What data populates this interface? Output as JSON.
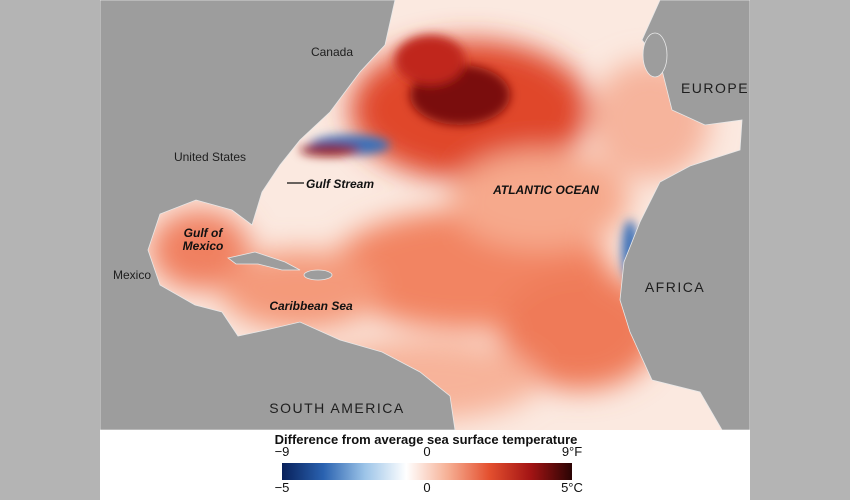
{
  "map": {
    "labels": {
      "canada": "Canada",
      "europe": "EUROPE",
      "united_states": "United States",
      "gulf_stream": "Gulf Stream",
      "atlantic_ocean": "ATLANTIC OCEAN",
      "gulf_of_mexico": [
        "Gulf of",
        "Mexico"
      ],
      "mexico": "Mexico",
      "caribbean_sea": "Caribbean Sea",
      "africa": "AFRICA",
      "south_america": "SOUTH AMERICA"
    }
  },
  "legend": {
    "title": "Difference from average sea surface temperature",
    "colors": [
      "#08205a",
      "#2a62b0",
      "#9cc4e8",
      "#ffffff",
      "#f6b095",
      "#e4502f",
      "#a31414",
      "#2a0404"
    ],
    "fahrenheit": {
      "range": [
        -9,
        9
      ],
      "ticks": [
        {
          "value": -9,
          "label": "−9"
        },
        0,
        {
          "value": 9,
          "label": "9°F"
        }
      ]
    },
    "celsius": {
      "range": [
        -5,
        5
      ],
      "ticks": [
        {
          "value": -5,
          "label": "−5"
        },
        0,
        {
          "value": 5,
          "label": "5°C"
        }
      ]
    }
  }
}
